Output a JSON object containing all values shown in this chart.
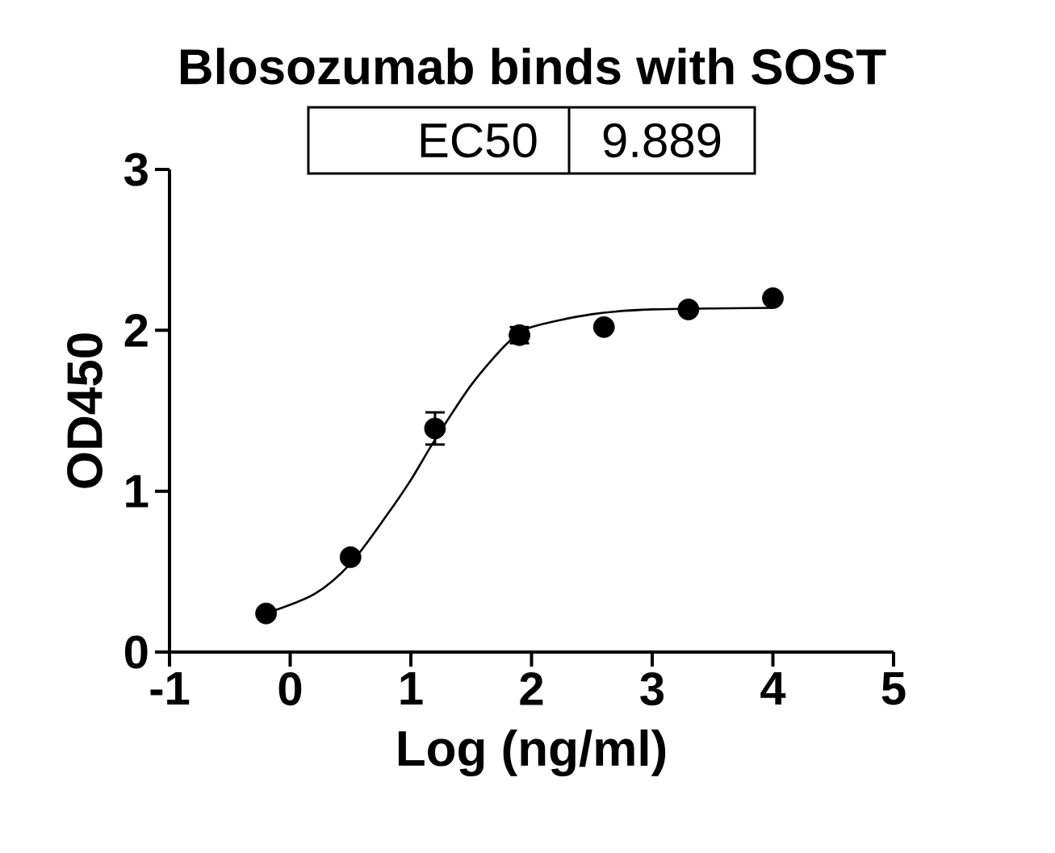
{
  "chart_data": {
    "type": "scatter",
    "title": "Blosozumab binds with SOST",
    "xlabel": "Log (ng/ml)",
    "ylabel": "OD450",
    "annotations": [
      "EC50",
      "9.889"
    ],
    "series": [
      {
        "color": "#000000",
        "marker": "circle",
        "x": [
          -0.2,
          0.5,
          1.2,
          1.9,
          2.6,
          3.3,
          4.0
        ],
        "values": [
          0.24,
          0.59,
          1.39,
          1.97,
          2.02,
          2.13,
          2.2
        ],
        "errors": [
          null,
          null,
          0.1,
          0.05,
          null,
          null,
          null
        ]
      },
      {
        "type": "line",
        "color": "#000000",
        "line_style": "solid",
        "marker": "none",
        "x": [
          -0.2,
          0.2,
          0.5,
          0.8,
          1.0,
          1.2,
          1.5,
          1.8,
          2.0,
          2.5,
          3.0,
          4.0
        ],
        "values": [
          0.24,
          0.36,
          0.55,
          0.85,
          1.07,
          1.32,
          1.66,
          1.92,
          2.02,
          2.1,
          2.13,
          2.14
        ]
      }
    ],
    "xlim": [
      -1,
      5
    ],
    "xticks": [
      -1,
      0,
      1,
      2,
      3,
      4,
      5
    ],
    "ylim": [
      0,
      3
    ],
    "yticks": [
      0,
      1,
      2,
      3
    ],
    "grid": false
  }
}
